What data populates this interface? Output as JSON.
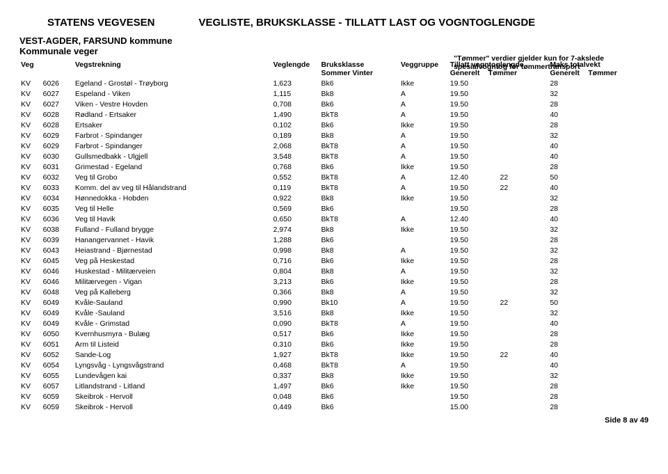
{
  "header": {
    "org": "STATENS VEGVESEN",
    "title": "VEGLISTE,  BRUKSKLASSE - TILLATT LAST OG VOGNTOGLENGDE",
    "region": "VEST-AGDER, FARSUND kommune",
    "sub": "Kommunale veger",
    "note1": "\"Tømmer\" verdier gjelder kun for 7-akslede",
    "note2": "spesialvogntog for tømmertransport"
  },
  "columns": {
    "veg": "Veg",
    "vegstrekning": "Vegstrekning",
    "veglengde": "Veglengde",
    "bruksklasse": "Bruksklasse",
    "bruksklasse2": "Sommer   Vinter",
    "veggruppe": "Veggruppe",
    "tillatt": "Tillatt vogntoglengde",
    "tillatt_g": "Generelt",
    "tillatt_t": "Tømmer",
    "maks": "Maks totalvekt",
    "maks_g": "Generelt",
    "maks_t": "Tømmer"
  },
  "rows": [
    {
      "v": "KV",
      "n": "6026",
      "s": "Egeland - Grostøl - Trøyborg",
      "l": "1,623",
      "bk": "Bk6",
      "g": "Ikke",
      "tg": "19.50",
      "tt": "",
      "mg": "28",
      "mt": ""
    },
    {
      "v": "KV",
      "n": "6027",
      "s": "Espeland - Viken",
      "l": "1,115",
      "bk": "Bk8",
      "g": "A",
      "tg": "19.50",
      "tt": "",
      "mg": "32",
      "mt": ""
    },
    {
      "v": "KV",
      "n": "6027",
      "s": "Viken - Vestre Hovden",
      "l": "0,708",
      "bk": "Bk6",
      "g": "A",
      "tg": "19.50",
      "tt": "",
      "mg": "28",
      "mt": ""
    },
    {
      "v": "KV",
      "n": "6028",
      "s": "Rødland - Ertsaker",
      "l": "1,490",
      "bk": "BkT8",
      "g": "A",
      "tg": "19.50",
      "tt": "",
      "mg": "40",
      "mt": ""
    },
    {
      "v": "KV",
      "n": "6028",
      "s": "Ertsaker",
      "l": "0,102",
      "bk": "Bk6",
      "g": "Ikke",
      "tg": "19.50",
      "tt": "",
      "mg": "28",
      "mt": ""
    },
    {
      "v": "KV",
      "n": "6029",
      "s": "Farbrot - Spindanger",
      "l": "0,189",
      "bk": "Bk8",
      "g": "A",
      "tg": "19.50",
      "tt": "",
      "mg": "32",
      "mt": ""
    },
    {
      "v": "KV",
      "n": "6029",
      "s": "Farbrot - Spindanger",
      "l": "2,068",
      "bk": "BkT8",
      "g": "A",
      "tg": "19.50",
      "tt": "",
      "mg": "40",
      "mt": ""
    },
    {
      "v": "KV",
      "n": "6030",
      "s": "Gullsmedbakk - Ulgjell",
      "l": "3,548",
      "bk": "BkT8",
      "g": "A",
      "tg": "19.50",
      "tt": "",
      "mg": "40",
      "mt": ""
    },
    {
      "v": "KV",
      "n": "6031",
      "s": "Grimestad - Egeland",
      "l": "0,768",
      "bk": "Bk6",
      "g": "Ikke",
      "tg": "19.50",
      "tt": "",
      "mg": "28",
      "mt": ""
    },
    {
      "v": "KV",
      "n": "6032",
      "s": "Veg til Grobo",
      "l": "0,552",
      "bk": "BkT8",
      "g": "A",
      "tg": "12.40",
      "tt": "22",
      "mg": "50",
      "mt": ""
    },
    {
      "v": "KV",
      "n": "6033",
      "s": "Komm. del av veg til Hålandstrand",
      "l": "0,119",
      "bk": "BkT8",
      "g": "A",
      "tg": "19.50",
      "tt": "22",
      "mg": "40",
      "mt": ""
    },
    {
      "v": "KV",
      "n": "6034",
      "s": "Hønnedokka - Hobden",
      "l": "0,922",
      "bk": "Bk8",
      "g": "Ikke",
      "tg": "19.50",
      "tt": "",
      "mg": "32",
      "mt": ""
    },
    {
      "v": "KV",
      "n": "6035",
      "s": "Veg til Helle",
      "l": "0,569",
      "bk": "Bk6",
      "g": "",
      "tg": "19.50",
      "tt": "",
      "mg": "28",
      "mt": ""
    },
    {
      "v": "KV",
      "n": "6036",
      "s": "Veg til Havik",
      "l": "0,650",
      "bk": "BkT8",
      "g": "A",
      "tg": "12.40",
      "tt": "",
      "mg": "40",
      "mt": ""
    },
    {
      "v": "KV",
      "n": "6038",
      "s": "Fulland - Fulland brygge",
      "l": "2,974",
      "bk": "Bk8",
      "g": "Ikke",
      "tg": "19.50",
      "tt": "",
      "mg": "32",
      "mt": ""
    },
    {
      "v": "KV",
      "n": "6039",
      "s": "Hanangervannet - Havik",
      "l": "1,288",
      "bk": "Bk6",
      "g": "",
      "tg": "19.50",
      "tt": "",
      "mg": "28",
      "mt": ""
    },
    {
      "v": "KV",
      "n": "6043",
      "s": "Heiastrand - Bjørnestad",
      "l": "0,998",
      "bk": "Bk8",
      "g": "A",
      "tg": "19.50",
      "tt": "",
      "mg": "32",
      "mt": ""
    },
    {
      "v": "KV",
      "n": "6045",
      "s": "Veg på Heskestad",
      "l": "0,716",
      "bk": "Bk6",
      "g": "Ikke",
      "tg": "19.50",
      "tt": "",
      "mg": "28",
      "mt": ""
    },
    {
      "v": "KV",
      "n": "6046",
      "s": "Huskestad - Militærveien",
      "l": "0,804",
      "bk": "Bk8",
      "g": "A",
      "tg": "19.50",
      "tt": "",
      "mg": "32",
      "mt": ""
    },
    {
      "v": "KV",
      "n": "6046",
      "s": "Militærvegen - Vigan",
      "l": "3,213",
      "bk": "Bk6",
      "g": "Ikke",
      "tg": "19.50",
      "tt": "",
      "mg": "28",
      "mt": ""
    },
    {
      "v": "KV",
      "n": "6048",
      "s": "Veg på Kalleberg",
      "l": "0,366",
      "bk": "Bk8",
      "g": "A",
      "tg": "19.50",
      "tt": "",
      "mg": "32",
      "mt": ""
    },
    {
      "v": "KV",
      "n": "6049",
      "s": "Kvåle-Sauland",
      "l": "0,990",
      "bk": "Bk10",
      "g": "A",
      "tg": "19.50",
      "tt": "22",
      "mg": "50",
      "mt": ""
    },
    {
      "v": "KV",
      "n": "6049",
      "s": "Kvåle -Sauland",
      "l": "3,516",
      "bk": "Bk8",
      "g": "Ikke",
      "tg": "19.50",
      "tt": "",
      "mg": "32",
      "mt": ""
    },
    {
      "v": "KV",
      "n": "6049",
      "s": "Kvåle - Grimstad",
      "l": "0,090",
      "bk": "BkT8",
      "g": "A",
      "tg": "19.50",
      "tt": "",
      "mg": "40",
      "mt": ""
    },
    {
      "v": "KV",
      "n": "6050",
      "s": "Kvernhusmyra - Bulæg",
      "l": "0,517",
      "bk": "Bk6",
      "g": "Ikke",
      "tg": "19.50",
      "tt": "",
      "mg": "28",
      "mt": ""
    },
    {
      "v": "KV",
      "n": "6051",
      "s": "Arm til Listeid",
      "l": "0,310",
      "bk": "Bk6",
      "g": "Ikke",
      "tg": "19.50",
      "tt": "",
      "mg": "28",
      "mt": ""
    },
    {
      "v": "KV",
      "n": "6052",
      "s": "Sande-Log",
      "l": "1,927",
      "bk": "BkT8",
      "g": "Ikke",
      "tg": "19.50",
      "tt": "22",
      "mg": "40",
      "mt": ""
    },
    {
      "v": "KV",
      "n": "6054",
      "s": "Lyngsvåg - Lyngsvågstrand",
      "l": "0,468",
      "bk": "BkT8",
      "g": "A",
      "tg": "19.50",
      "tt": "",
      "mg": "40",
      "mt": ""
    },
    {
      "v": "KV",
      "n": "6055",
      "s": "Lundevågen kai",
      "l": "0,337",
      "bk": "Bk8",
      "g": "Ikke",
      "tg": "19.50",
      "tt": "",
      "mg": "32",
      "mt": ""
    },
    {
      "v": "KV",
      "n": "6057",
      "s": "Litlandstrand - Litland",
      "l": "1,497",
      "bk": "Bk6",
      "g": "Ikke",
      "tg": "19.50",
      "tt": "",
      "mg": "28",
      "mt": ""
    },
    {
      "v": "KV",
      "n": "6059",
      "s": "Skeibrok - Hervoll",
      "l": "0,048",
      "bk": "Bk6",
      "g": "",
      "tg": "19.50",
      "tt": "",
      "mg": "28",
      "mt": ""
    },
    {
      "v": "KV",
      "n": "6059",
      "s": "Skeibrok - Hervoll",
      "l": "0,449",
      "bk": "Bk6",
      "g": "",
      "tg": "15.00",
      "tt": "",
      "mg": "28",
      "mt": ""
    }
  ],
  "footer": "Side 8 av 49"
}
